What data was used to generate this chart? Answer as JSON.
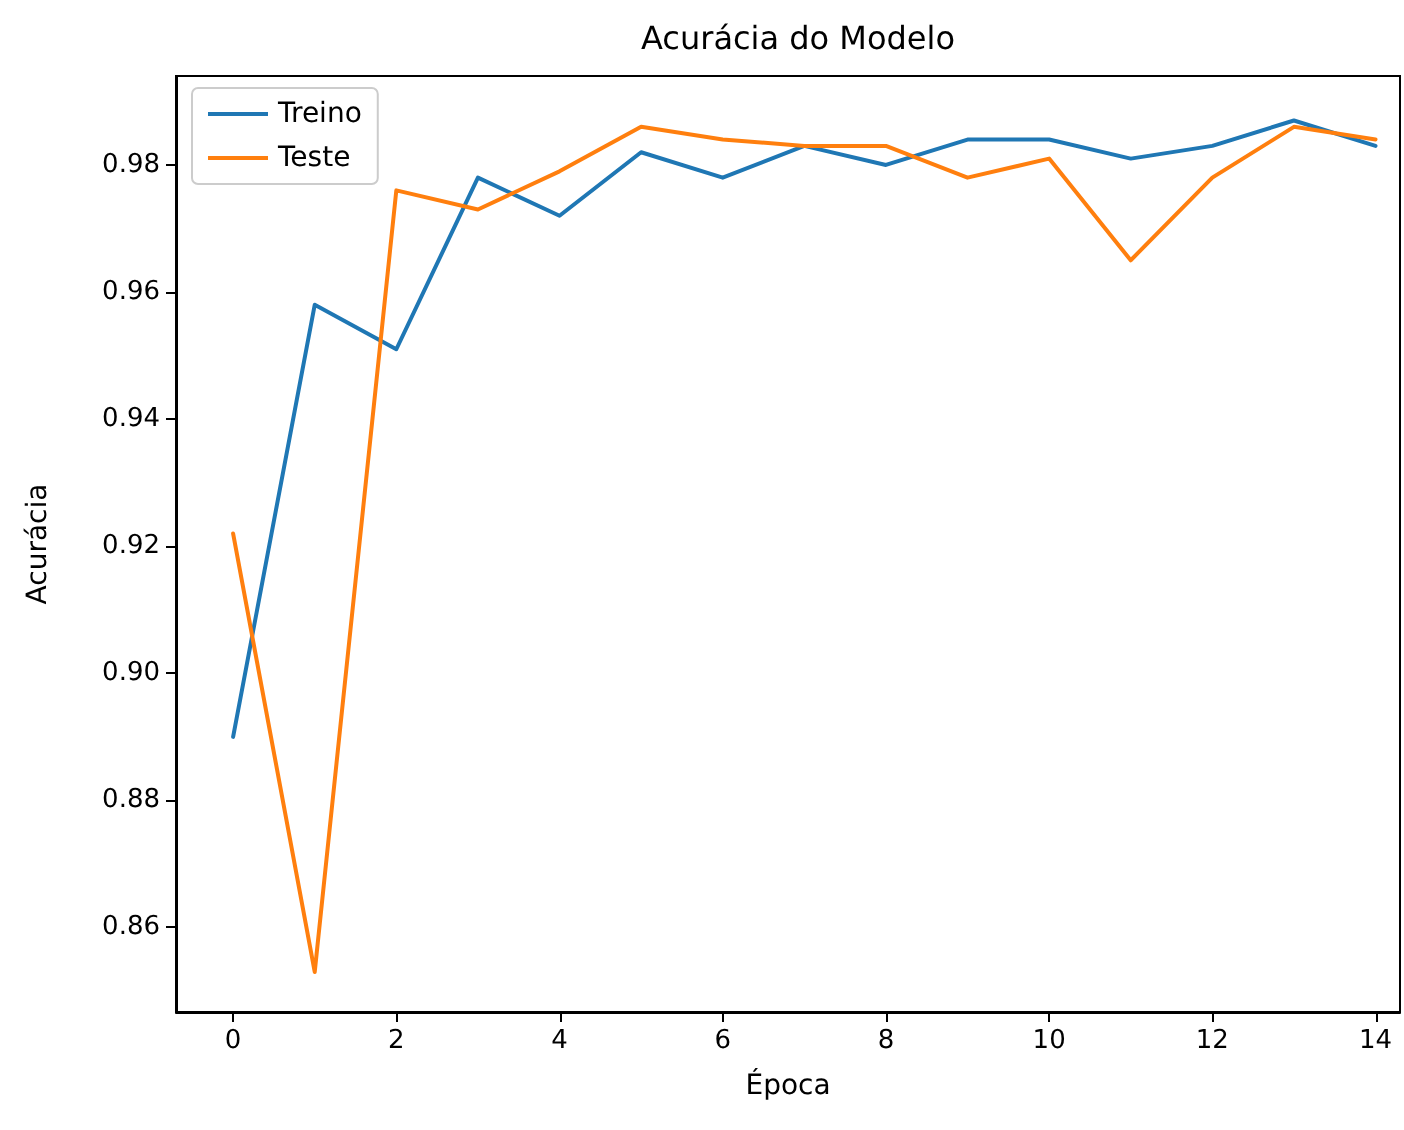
{
  "chart_data": {
    "type": "line",
    "title": "Acurácia do Modelo",
    "xlabel": "Época",
    "ylabel": "Acurácia",
    "x": [
      0,
      1,
      2,
      3,
      4,
      5,
      6,
      7,
      8,
      9,
      10,
      11,
      12,
      13,
      14
    ],
    "series": [
      {
        "name": "Treino",
        "color": "#1f77b4",
        "values": [
          0.89,
          0.958,
          0.951,
          0.978,
          0.972,
          0.982,
          0.978,
          0.983,
          0.98,
          0.984,
          0.984,
          0.981,
          0.983,
          0.987,
          0.983
        ]
      },
      {
        "name": "Teste",
        "color": "#ff7f0e",
        "values": [
          0.922,
          0.853,
          0.976,
          0.973,
          0.979,
          0.986,
          0.984,
          0.983,
          0.983,
          0.978,
          0.981,
          0.965,
          0.978,
          0.986,
          0.984
        ]
      }
    ],
    "xlim": [
      -0.7,
      14.3
    ],
    "xticks": [
      0,
      2,
      4,
      6,
      8,
      10,
      12,
      14
    ],
    "ylim": [
      0.8467,
      0.994
    ],
    "yticks": [
      0.86,
      0.88,
      {
        "value": 0.9,
        "label": "0.90"
      },
      0.92,
      0.94,
      0.96,
      0.98
    ],
    "grid": false,
    "legend": "top left",
    "marker": "none",
    "line_style": "solid"
  }
}
